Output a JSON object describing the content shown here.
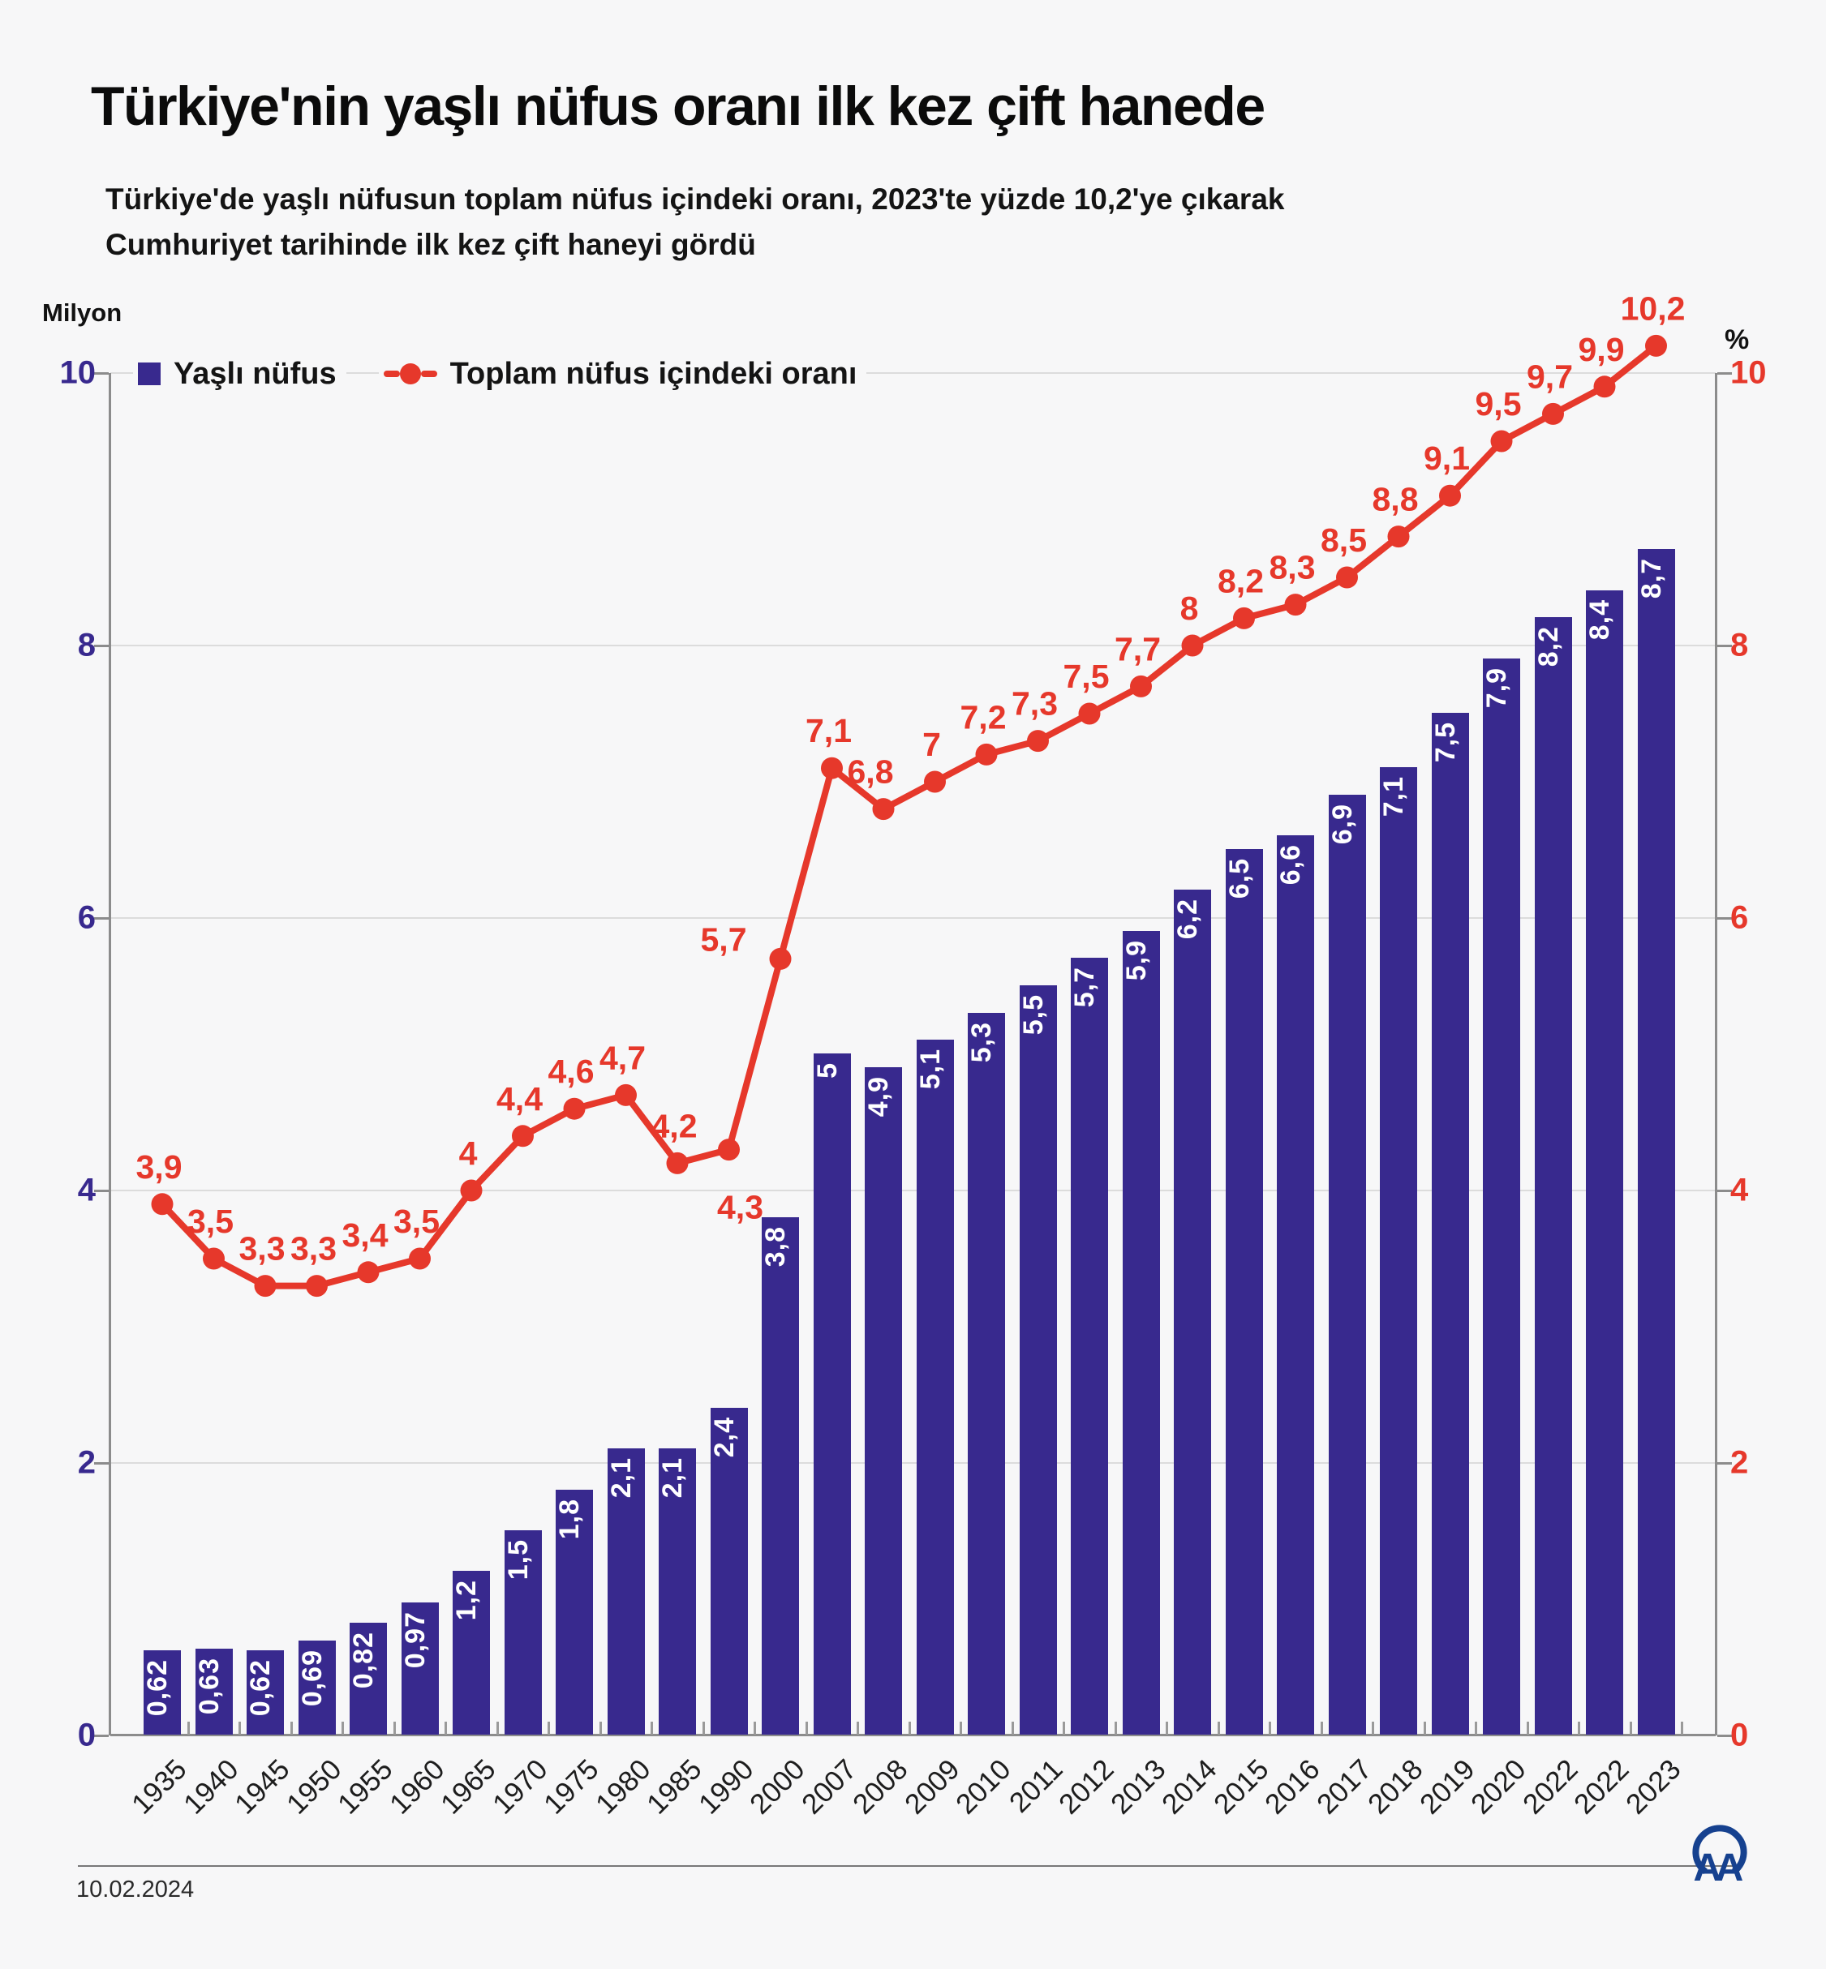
{
  "header": {
    "title": "Türkiye'nin yaşlı nüfus oranı ilk kez çift hanede",
    "subtitle_line1": "Türkiye'de yaşlı nüfusun toplam nüfus içindeki oranı, 2023'te yüzde 10,2'ye çıkarak",
    "subtitle_line2": "Cumhuriyet tarihinde ilk kez çift haneyi gördü"
  },
  "legend": {
    "bar_label": "Yaşlı nüfus",
    "line_label": "Toplam nüfus içindeki oranı"
  },
  "axes": {
    "left_unit": "Milyon",
    "right_unit": "%",
    "left_ticks": [
      "0",
      "2",
      "4",
      "6",
      "8",
      "10"
    ],
    "right_ticks": [
      "0",
      "2",
      "4",
      "6",
      "8",
      "10"
    ]
  },
  "footer": {
    "date": "10.02.2024",
    "logo_text": "AA"
  },
  "colors": {
    "background": "#f7f7f8",
    "bar": "#38298e",
    "line": "#e6382b",
    "left_axis_text": "#38298e",
    "right_axis_text": "#e6382b",
    "grid": "#dcdcdc",
    "axis": "#8c8c8c"
  },
  "chart_data": {
    "type": "bar+line",
    "title": "Türkiye'nin yaşlı nüfus oranı ilk kez çift hanede",
    "categories": [
      "1935",
      "1940",
      "1945",
      "1950",
      "1955",
      "1960",
      "1965",
      "1970",
      "1975",
      "1980",
      "1985",
      "1990",
      "2000",
      "2007",
      "2008",
      "2009",
      "2010",
      "2011",
      "2012",
      "2013",
      "2014",
      "2015",
      "2016",
      "2017",
      "2018",
      "2019",
      "2020",
      "2022",
      "2022",
      "2023"
    ],
    "series": [
      {
        "name": "Yaşlı nüfus",
        "type": "bar",
        "axis": "left",
        "unit": "Milyon",
        "values": [
          0.62,
          0.63,
          0.62,
          0.69,
          0.82,
          0.97,
          1.2,
          1.5,
          1.8,
          2.1,
          2.1,
          2.4,
          3.8,
          5,
          4.9,
          5.1,
          5.3,
          5.5,
          5.7,
          5.9,
          6.2,
          6.5,
          6.6,
          6.9,
          7.1,
          7.5,
          7.9,
          8.2,
          8.4,
          8.7
        ],
        "labels": [
          "0,62",
          "0,63",
          "0,62",
          "0,69",
          "0,82",
          "0,97",
          "1,2",
          "1,5",
          "1,8",
          "2,1",
          "2,1",
          "2,4",
          "3,8",
          "5",
          "4,9",
          "5,1",
          "5,3",
          "5,5",
          "5,7",
          "5,9",
          "6,2",
          "6,5",
          "6,6",
          "6,9",
          "7,1",
          "7,5",
          "7,9",
          "8,2",
          "8,4",
          "8,7"
        ]
      },
      {
        "name": "Toplam nüfus içindeki oranı",
        "type": "line",
        "axis": "right",
        "unit": "%",
        "values": [
          3.9,
          3.5,
          3.3,
          3.3,
          3.4,
          3.5,
          4,
          4.4,
          4.6,
          4.7,
          4.2,
          4.3,
          5.7,
          7.1,
          6.8,
          7,
          7.2,
          7.3,
          7.5,
          7.7,
          8,
          8.2,
          8.3,
          8.5,
          8.8,
          9.1,
          9.5,
          9.7,
          9.9,
          10.2
        ],
        "labels": [
          "3,9",
          "3,5",
          "3,3",
          "3,3",
          "3,4",
          "3,5",
          "4",
          "4,4",
          "4,6",
          "4,7",
          "4,2",
          "4,3",
          "5,7",
          "7,1",
          "6,8",
          "7",
          "7,2",
          "7,3",
          "7,5",
          "7,7",
          "8",
          "8,2",
          "8,3",
          "8,5",
          "8,8",
          "9,1",
          "9,5",
          "9,7",
          "9,9",
          "10,2"
        ]
      }
    ],
    "ylim_left": [
      0,
      10
    ],
    "ylim_right": [
      0,
      10
    ],
    "y_tick_step": 2,
    "grid": true,
    "legend_position": "top-left"
  }
}
